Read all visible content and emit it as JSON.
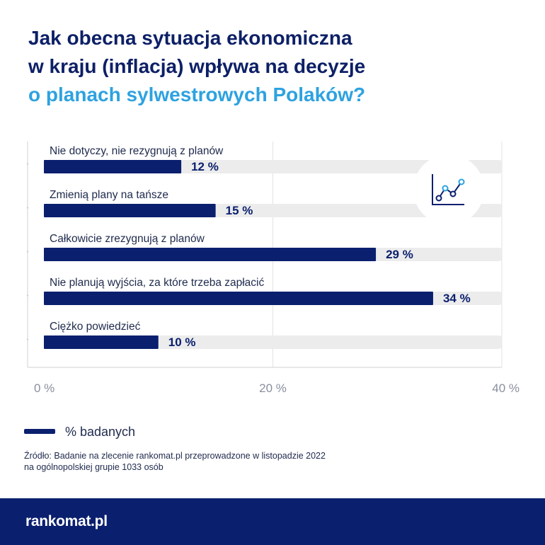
{
  "title": {
    "line1": "Jak obecna sytuacja ekonomiczna",
    "line2": "w kraju (inflacja) wpływa na decyzje",
    "line3": "o planach sylwestrowych Polaków?"
  },
  "colors": {
    "title": "#0d2066",
    "accent": "#2da2e0",
    "bar": "#0a1f6e",
    "track": "#ececec",
    "footer": "#0a1f6e",
    "text": "#1f2a4d"
  },
  "icons": {
    "chart_icon": "line-chart-icon"
  },
  "chart_data": {
    "type": "bar",
    "orientation": "horizontal",
    "categories": [
      "Nie dotyczy, nie rezygnują z planów",
      "Zmienią plany na tańsze",
      "Całkowicie zrezygnują z planów",
      "Nie planują wyjścia, za które trzeba zapłacić",
      "Ciężko powiedzieć"
    ],
    "series": [
      {
        "name": "% badanych",
        "values": [
          12,
          15,
          29,
          34,
          10
        ]
      }
    ],
    "value_labels": [
      "12 %",
      "15 %",
      "29 %",
      "34 %",
      "10 %"
    ],
    "xlim": [
      0,
      40
    ],
    "x_ticks": [
      0,
      20,
      40
    ],
    "x_tick_labels": [
      "0 %",
      "20 %",
      "40 %"
    ],
    "grid": true,
    "legend": "bottom-left"
  },
  "legend": {
    "label": "% badanych"
  },
  "source": {
    "line1": "Źródło: Badanie na zlecenie rankomat.pl przeprowadzone w listopadzie 2022",
    "line2": "na ogólnopolskiej grupie 1033 osób"
  },
  "footer": {
    "logo": "rankomat.pl"
  }
}
